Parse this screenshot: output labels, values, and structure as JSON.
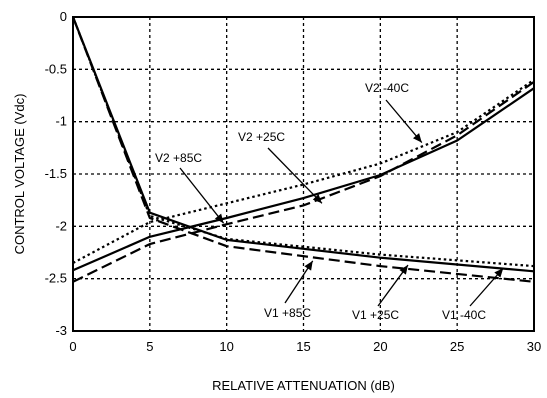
{
  "chart_data": {
    "type": "line",
    "title": "",
    "xlabel": "RELATIVE ATTENUATION (dB)",
    "ylabel": "CONTROL VOLTAGE (Vdc)",
    "xlim": [
      0,
      30
    ],
    "ylim": [
      -3,
      0
    ],
    "xticks": [
      0,
      5,
      10,
      15,
      20,
      25,
      30
    ],
    "yticks": [
      0,
      -0.5,
      -1,
      -1.5,
      -2,
      -2.5,
      -3
    ],
    "xtick_labels": [
      "0",
      "5",
      "10",
      "15",
      "20",
      "25",
      "30"
    ],
    "ytick_labels": [
      "0",
      "-0.5",
      "-1",
      "-1.5",
      "-2",
      "-2.5",
      "-3"
    ],
    "grid": true,
    "legend": "none",
    "series": [
      {
        "name": "V1 +85C",
        "style": "solid",
        "x": [
          0,
          5,
          10,
          20,
          30
        ],
        "y": [
          0,
          -1.87,
          -2.13,
          -2.3,
          -2.43
        ]
      },
      {
        "name": "V1 +25C",
        "style": "dashed",
        "x": [
          0,
          5,
          10,
          20,
          30
        ],
        "y": [
          0,
          -1.92,
          -2.19,
          -2.38,
          -2.53
        ]
      },
      {
        "name": "V1 -40C",
        "style": "dotted",
        "x": [
          0,
          5,
          10,
          20,
          30
        ],
        "y": [
          0,
          -1.9,
          -2.12,
          -2.27,
          -2.38
        ]
      },
      {
        "name": "V2 +85C",
        "style": "solid",
        "x": [
          0,
          5,
          10,
          15,
          20,
          25,
          30
        ],
        "y": [
          -2.42,
          -2.1,
          -1.92,
          -1.73,
          -1.51,
          -1.18,
          -0.68
        ]
      },
      {
        "name": "V2 +25C",
        "style": "dashed",
        "x": [
          0,
          5,
          10,
          15,
          20,
          25,
          30
        ],
        "y": [
          -2.53,
          -2.17,
          -1.98,
          -1.8,
          -1.52,
          -1.13,
          -0.62
        ]
      },
      {
        "name": "V2 -40C",
        "style": "dotted",
        "x": [
          0,
          5,
          10,
          15,
          20,
          25,
          30
        ],
        "y": [
          -2.35,
          -1.96,
          -1.78,
          -1.6,
          -1.4,
          -1.1,
          -0.6
        ]
      }
    ],
    "annotations": [
      {
        "text": "V2 -40C",
        "arrow_to": [
          22.7,
          -1.2
        ]
      },
      {
        "text": "V2 +25C",
        "arrow_to": [
          16.2,
          -1.78
        ]
      },
      {
        "text": "V2 +85C",
        "arrow_to": [
          9.8,
          -1.97
        ]
      },
      {
        "text": "V1 +85C",
        "arrow_to": [
          15.6,
          -2.33
        ]
      },
      {
        "text": "V1 +25C",
        "arrow_to": [
          21.8,
          -2.37
        ]
      },
      {
        "text": "V1 -40C",
        "arrow_to": [
          28.0,
          -2.4
        ]
      }
    ],
    "colors": {
      "line": "#000000",
      "grid": "#000000",
      "background": "#ffffff"
    }
  }
}
